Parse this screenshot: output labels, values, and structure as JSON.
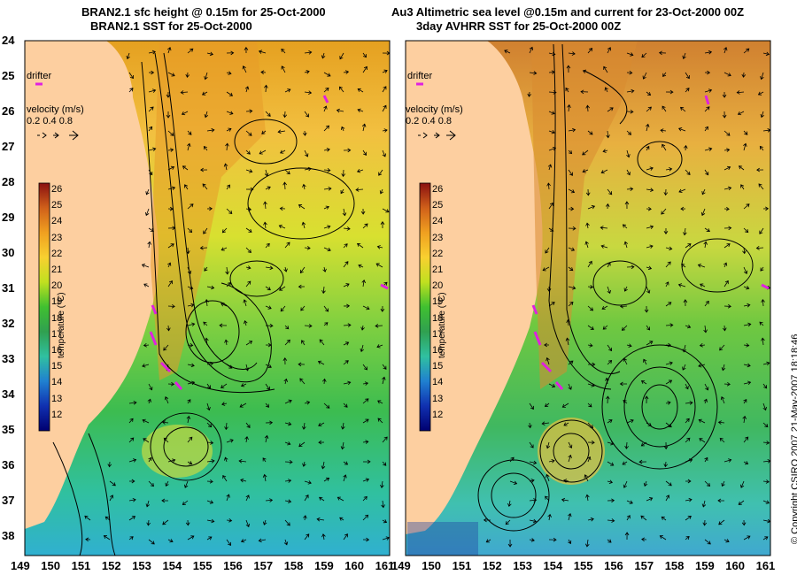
{
  "colors": {
    "land": "#fdcfa0",
    "background": "#ffffff",
    "drifter": "#e020e0",
    "contour": "#000000"
  },
  "left_panel": {
    "title_line1": "BRAN2.1 sfc height @ 0.15m for 25-Oct-2000",
    "title_line2": "BRAN2.1 SST for 25-Oct-2000",
    "drifter_label": "drifter",
    "velocity_label": "velocity (m/s)",
    "velocity_scale": "0.2 0.4 0.8"
  },
  "right_panel": {
    "title_line1": "Au3 Altimetric sea level  @0.15m and current for 23-Oct-2000 00Z",
    "title_line2": "3day AVHRR SST for 25-Oct-2000 00Z",
    "drifter_label": "drifter",
    "velocity_label": "velocity (m/s)",
    "velocity_scale": "0.2 0.4 0.8"
  },
  "colorbar": {
    "label": "temperature (°C)",
    "ticks": [
      "26",
      "25",
      "24",
      "23",
      "22",
      "21",
      "20",
      "19",
      "18",
      "17",
      "16",
      "15",
      "14",
      "13",
      "12"
    ]
  },
  "lat_labels": [
    "24",
    "25",
    "26",
    "27",
    "28",
    "29",
    "30",
    "31",
    "32",
    "33",
    "34",
    "35",
    "36",
    "37",
    "38"
  ],
  "lon_labels_left": [
    "149",
    "150",
    "151",
    "152",
    "153",
    "154",
    "155",
    "156",
    "157",
    "158",
    "159",
    "160",
    "161"
  ],
  "lon_labels_right": [
    "149",
    "150",
    "151",
    "152",
    "153",
    "154",
    "155",
    "156",
    "157",
    "158",
    "159",
    "160",
    "161"
  ],
  "copyright": "© Copyright CSIRO 2007  21-May-2007 18:18:46"
}
